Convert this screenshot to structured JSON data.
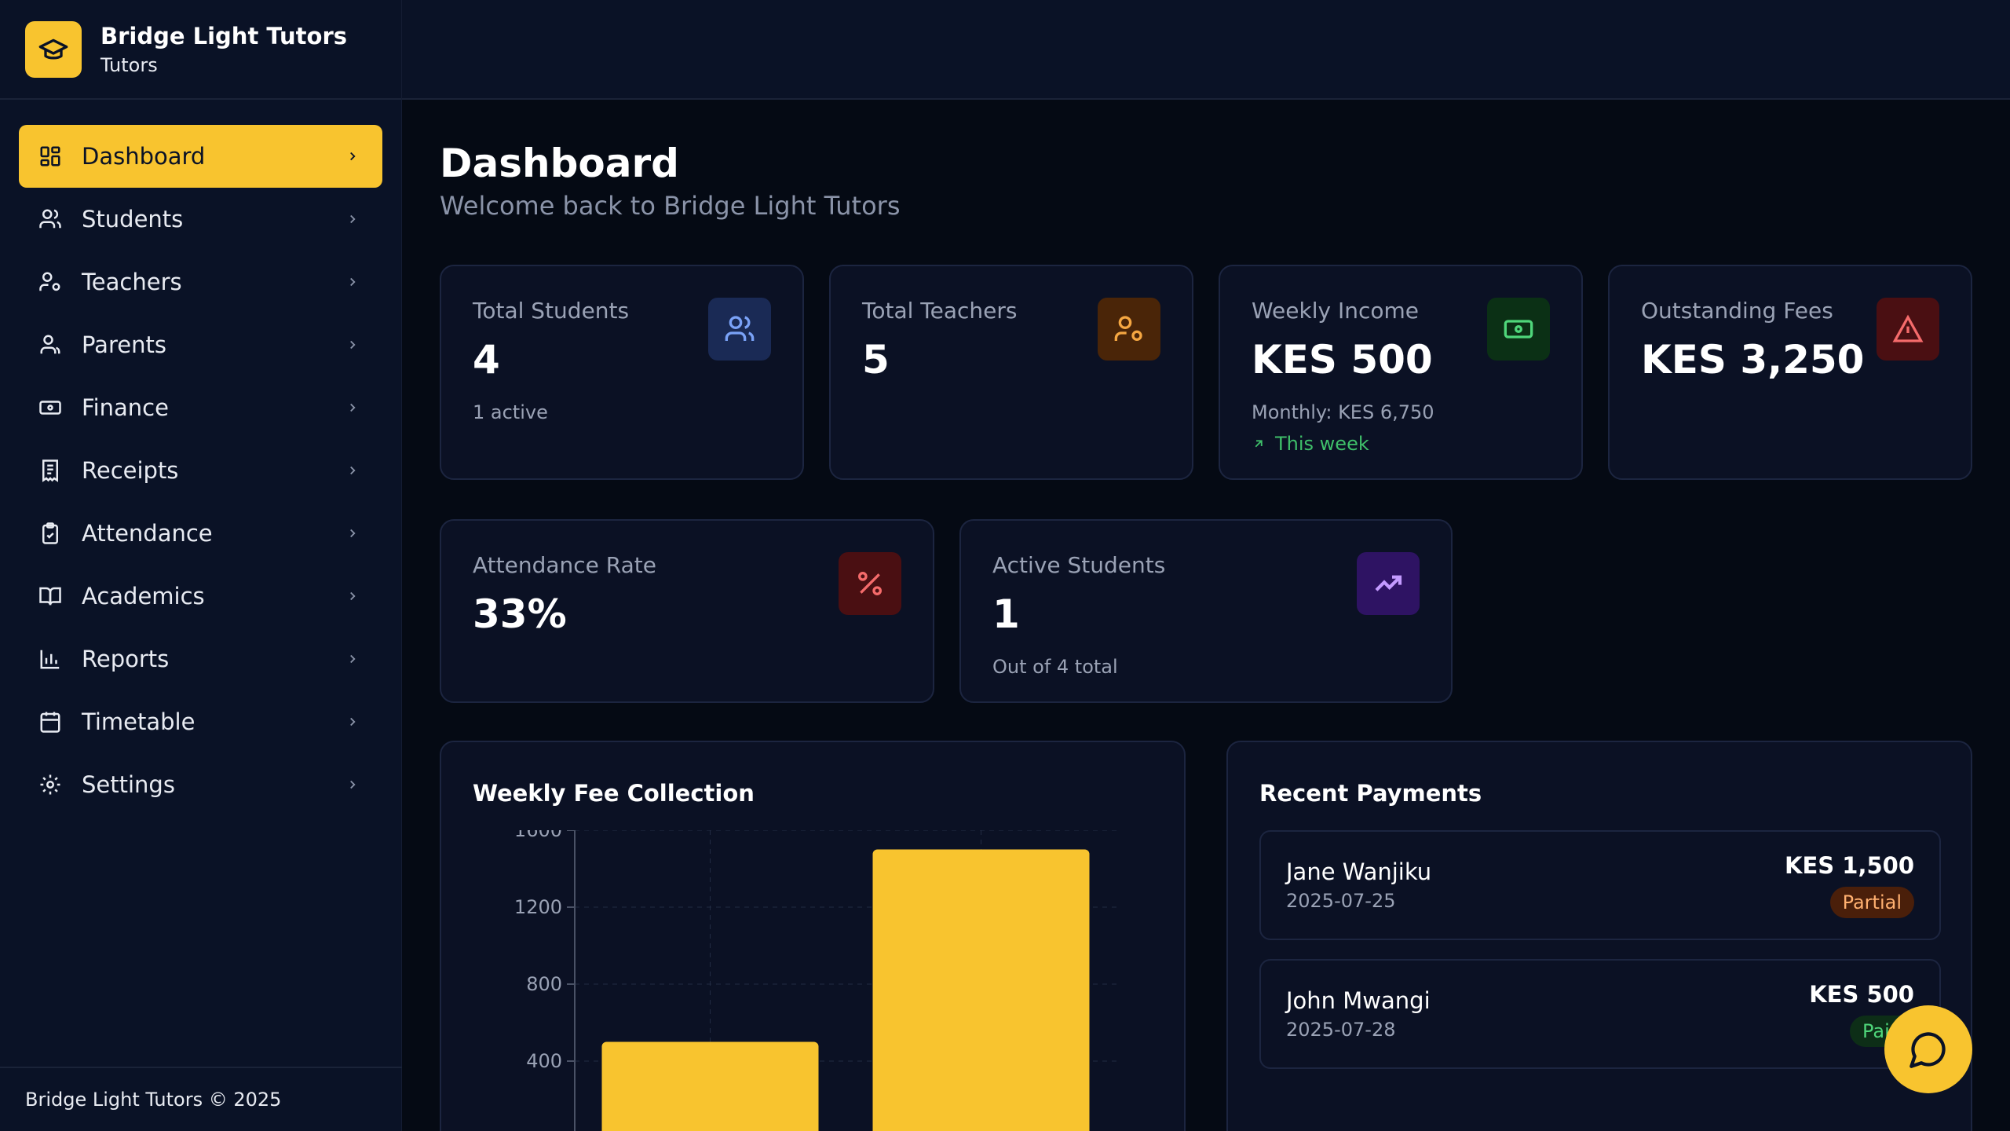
{
  "brand": {
    "name": "Bridge Light Tutors",
    "subtitle": "Tutors",
    "icon": "graduation-cap-icon",
    "accent": "#f8c42f"
  },
  "nav": [
    {
      "label": "Dashboard",
      "icon": "dashboard-icon",
      "active": true
    },
    {
      "label": "Students",
      "icon": "users-icon"
    },
    {
      "label": "Teachers",
      "icon": "user-cog-icon"
    },
    {
      "label": "Parents",
      "icon": "user-group-icon"
    },
    {
      "label": "Finance",
      "icon": "banknote-icon"
    },
    {
      "label": "Receipts",
      "icon": "receipt-icon"
    },
    {
      "label": "Attendance",
      "icon": "clipboard-check-icon"
    },
    {
      "label": "Academics",
      "icon": "book-icon"
    },
    {
      "label": "Reports",
      "icon": "bar-chart-icon"
    },
    {
      "label": "Timetable",
      "icon": "calendar-icon"
    },
    {
      "label": "Settings",
      "icon": "gear-icon"
    }
  ],
  "footer": {
    "text": "Bridge Light Tutors © 2025"
  },
  "page": {
    "title": "Dashboard",
    "subtitle": "Welcome back to Bridge Light Tutors"
  },
  "stats": {
    "total_students": {
      "label": "Total Students",
      "value": "4",
      "note": "1 active",
      "icon": "users-icon",
      "icon_bg": "#1a2a55",
      "icon_color": "#7aa2f7"
    },
    "total_teachers": {
      "label": "Total Teachers",
      "value": "5",
      "icon": "user-cog-icon",
      "icon_bg": "#4a2508",
      "icon_color": "#f5a742"
    },
    "weekly_income": {
      "label": "Weekly Income",
      "value": "KES 500",
      "note": "Monthly: KES 6,750",
      "trend": "This week",
      "icon": "banknote-icon",
      "icon_bg": "#0b3015",
      "icon_color": "#4fd67a"
    },
    "outstanding_fees": {
      "label": "Outstanding Fees",
      "value": "KES 3,250",
      "icon": "alert-triangle-icon",
      "icon_bg": "#4a0f12",
      "icon_color": "#f56b6b"
    },
    "attendance_rate": {
      "label": "Attendance Rate",
      "value": "33%",
      "icon": "percent-icon",
      "icon_bg": "#4a0f12",
      "icon_color": "#f56b6b"
    },
    "active_students": {
      "label": "Active Students",
      "value": "1",
      "note": "Out of 4 total",
      "icon": "trending-up-icon",
      "icon_bg": "#2e1363",
      "icon_color": "#c49bff"
    }
  },
  "weekly_chart": {
    "title": "Weekly Fee Collection"
  },
  "chart_data": {
    "type": "bar",
    "title": "Weekly Fee Collection",
    "categories": [
      "",
      ""
    ],
    "values": [
      500,
      1500
    ],
    "ylim": [
      0,
      1600
    ],
    "yticks": [
      400,
      800,
      1200,
      1600
    ],
    "grid": true,
    "color": "#f8c42f"
  },
  "recent_payments": {
    "title": "Recent Payments",
    "items": [
      {
        "name": "Jane Wanjiku",
        "date": "2025-07-25",
        "amount": "KES 1,500",
        "status": "Partial"
      },
      {
        "name": "John Mwangi",
        "date": "2025-07-28",
        "amount": "KES 500",
        "status": "Paid"
      }
    ]
  },
  "chat_button": {
    "icon": "chat-bubble-icon"
  }
}
